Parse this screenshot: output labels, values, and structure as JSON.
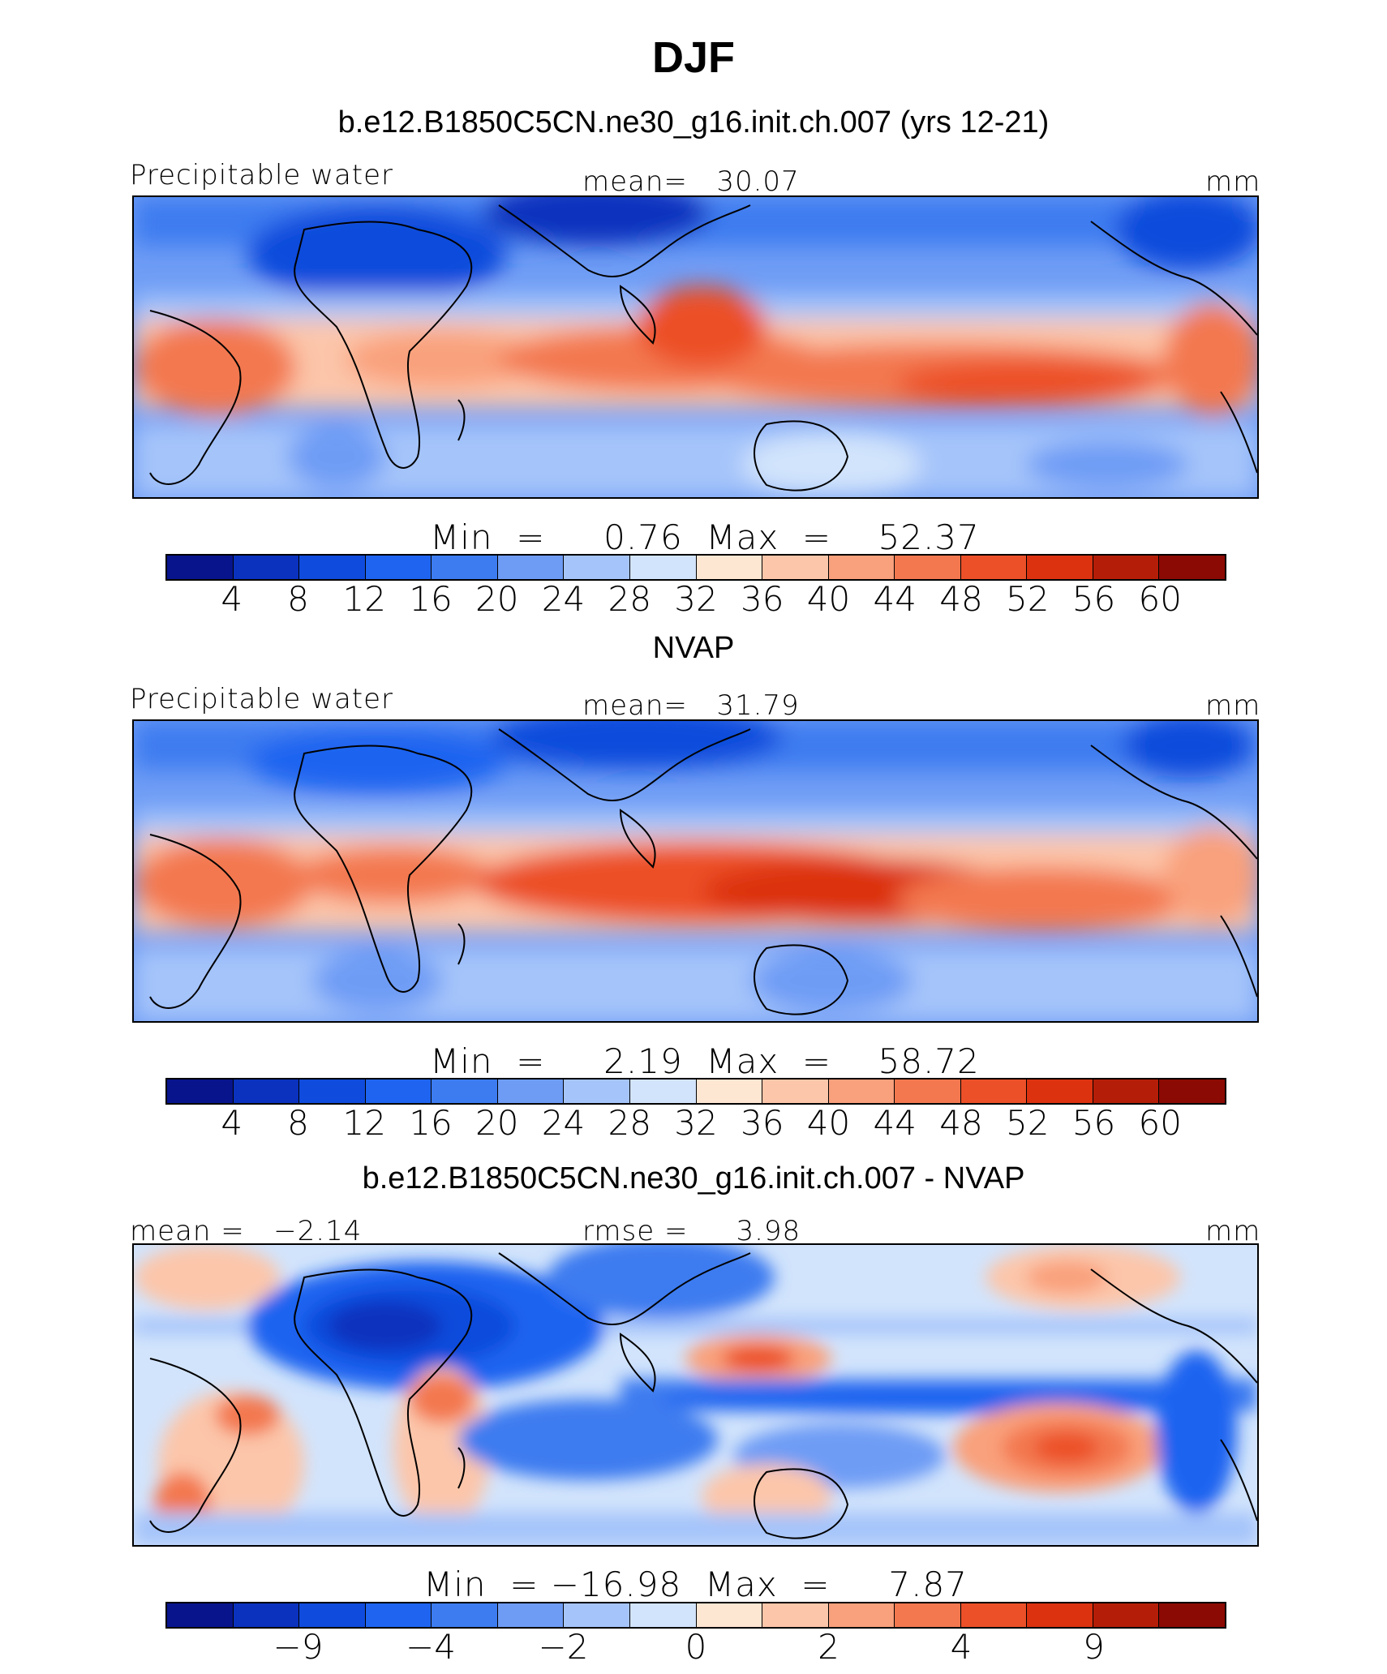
{
  "title": "DJF",
  "colors": [
    "#08148c",
    "#0a32be",
    "#0f4bdc",
    "#1e64f0",
    "#3c7cf0",
    "#6e9cf5",
    "#a5c4fa",
    "#d2e4fc",
    "#fde6d2",
    "#fcc6aa",
    "#f9a07c",
    "#f3784f",
    "#ec5028",
    "#dc3210",
    "#b41e08",
    "#8c0a04"
  ],
  "panel1": {
    "subtitle": "b.e12.B1850C5CN.ne30_g16.init.ch.007 (yrs 12-21)",
    "left_label": "Precipitable water",
    "center_label": "mean=   30.07",
    "units": "mm",
    "minmax": "Min  =     0.76  Max  =    52.37",
    "ticks": [
      "4",
      "8",
      "12",
      "16",
      "20",
      "24",
      "28",
      "32",
      "36",
      "40",
      "44",
      "48",
      "52",
      "56",
      "60"
    ]
  },
  "panel2": {
    "subtitle": "NVAP",
    "left_label": "Precipitable water",
    "center_label": "mean=   31.79",
    "units": "mm",
    "minmax": "Min  =     2.19  Max  =    58.72",
    "ticks": [
      "4",
      "8",
      "12",
      "16",
      "20",
      "24",
      "28",
      "32",
      "36",
      "40",
      "44",
      "48",
      "52",
      "56",
      "60"
    ]
  },
  "panel3": {
    "subtitle": "b.e12.B1850C5CN.ne30_g16.init.ch.007 - NVAP",
    "left_label": "mean =   −2.14",
    "center_label": "rmse =     3.98",
    "units": "mm",
    "minmax": "Min  = −16.98  Max  =     7.87",
    "ticks": [
      "−9",
      "−4",
      "−2",
      "0",
      "2",
      "4",
      "9"
    ]
  }
}
